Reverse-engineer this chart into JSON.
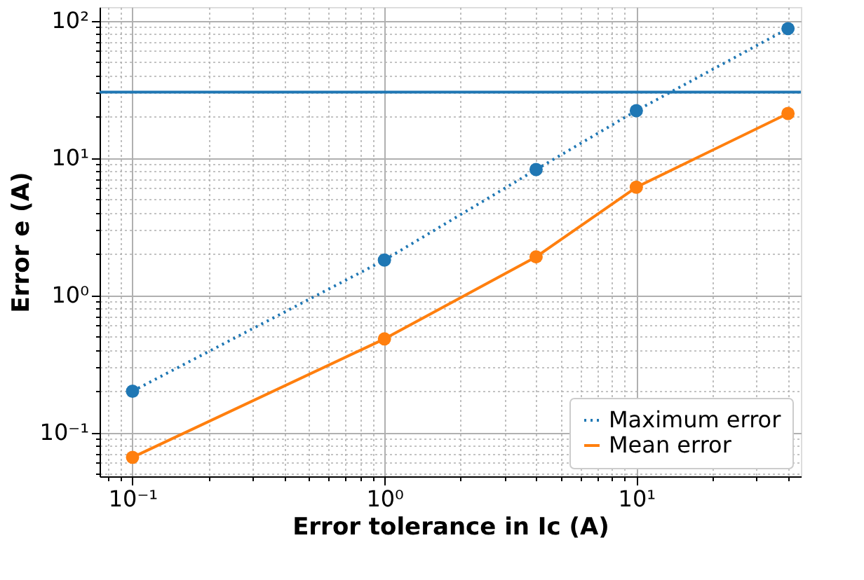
{
  "chart_data": {
    "type": "line",
    "xlabel": "Error tolerance in Ic (A)",
    "ylabel": "Error e (A)",
    "x": [
      0.1,
      1,
      4,
      10,
      40
    ],
    "series": [
      {
        "name": "Maximum error",
        "color": "#1f77b4",
        "values": [
          0.2,
          1.8,
          8.2,
          22,
          87
        ],
        "line_style": "dotted"
      },
      {
        "name": "Mean error",
        "color": "#ff7f0e",
        "values": [
          0.066,
          0.48,
          1.9,
          6.1,
          21
        ],
        "line_style": "solid"
      }
    ],
    "log": "xy",
    "xlim": [
      0.074,
      45
    ],
    "ylim": [
      0.048,
      125
    ],
    "xticks": [
      {
        "value": 0.1,
        "label": "10⁻¹"
      },
      {
        "value": 1,
        "label": "10⁰"
      },
      {
        "value": 10,
        "label": "10¹"
      }
    ],
    "yticks": [
      {
        "value": 0.1,
        "label": "10⁻¹"
      },
      {
        "value": 1,
        "label": "10⁰"
      },
      {
        "value": 10,
        "label": "10¹"
      },
      {
        "value": 100,
        "label": "10²"
      }
    ],
    "ref_lines": [
      {
        "axis": "y",
        "value": 30,
        "color": "#1f77b4",
        "line_style": "solid"
      }
    ],
    "grid": true,
    "legend": "bottom right",
    "marker": "circle"
  }
}
